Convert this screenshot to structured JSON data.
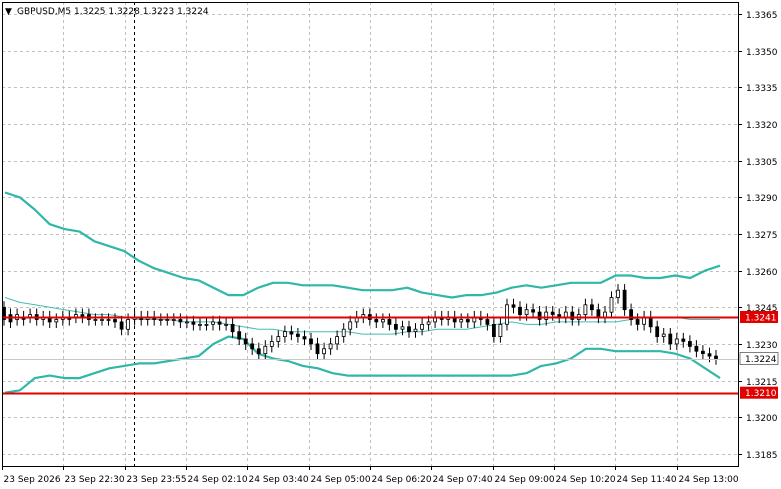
{
  "header": {
    "arrow": "▼",
    "title": "GBPUSD,M5  1.3225 1.3228 1.3223 1.3224"
  },
  "colors": {
    "background": "#ffffff",
    "grid": "#c0c0c0",
    "candle": "#000000",
    "bands": "#2fb7a8",
    "level_line": "#e00000",
    "current_label_bg": "#ffffff",
    "level_label_bg": "#e00000"
  },
  "chart_data": {
    "type": "candlestick",
    "symbol": "GBPUSD",
    "timeframe": "M5",
    "ohlc_header": {
      "open": 1.3225,
      "high": 1.3228,
      "low": 1.3223,
      "close": 1.3224
    },
    "ylim": [
      1.318,
      1.337
    ],
    "y_ticks": [
      "1.3365",
      "1.3350",
      "1.3335",
      "1.3320",
      "1.3305",
      "1.3290",
      "1.3275",
      "1.3260",
      "1.3245",
      "1.3230",
      "1.3215",
      "1.3200",
      "1.3185"
    ],
    "x_tick_labels": [
      "23 Sep 2026",
      "23 Sep 22:30",
      "23 Sep 23:55",
      "24 Sep 02:10",
      "24 Sep 03:40",
      "24 Sep 05:00",
      "24 Sep 06:20",
      "24 Sep 07:40",
      "24 Sep 09:00",
      "24 Sep 10:20",
      "24 Sep 11:40",
      "24 Sep 13:00"
    ],
    "grid": true,
    "current_price": {
      "value": 1.3224,
      "label": "1.3224"
    },
    "levels": [
      {
        "value": 1.3241,
        "label": "1.3241"
      },
      {
        "value": 1.321,
        "label": "1.3210"
      }
    ],
    "upper_band": [
      1.3292,
      1.329,
      1.3285,
      1.3279,
      1.3277,
      1.3276,
      1.3272,
      1.327,
      1.3268,
      1.3264,
      1.3261,
      1.3259,
      1.3257,
      1.3256,
      1.3253,
      1.325,
      1.325,
      1.3253,
      1.3255,
      1.3255,
      1.3254,
      1.3254,
      1.3254,
      1.3253,
      1.3252,
      1.3252,
      1.3252,
      1.3253,
      1.3251,
      1.325,
      1.3249,
      1.325,
      1.325,
      1.3251,
      1.3253,
      1.3254,
      1.3253,
      1.3254,
      1.3255,
      1.3255,
      1.3255,
      1.3258,
      1.3258,
      1.3257,
      1.3257,
      1.3258,
      1.3257,
      1.326,
      1.3262
    ],
    "middle_band": [
      1.3249,
      1.3247,
      1.3246,
      1.3245,
      1.3244,
      1.3243,
      1.3242,
      1.3242,
      1.3241,
      1.324,
      1.324,
      1.324,
      1.3239,
      1.3239,
      1.3239,
      1.3238,
      1.3237,
      1.3236,
      1.3236,
      1.3235,
      1.3235,
      1.3235,
      1.3235,
      1.3235,
      1.3234,
      1.3234,
      1.3234,
      1.3235,
      1.3235,
      1.3236,
      1.3236,
      1.3236,
      1.3237,
      1.3238,
      1.3239,
      1.3238,
      1.3238,
      1.3239,
      1.3239,
      1.3239,
      1.3239,
      1.3239,
      1.324,
      1.3241,
      1.3241,
      1.3241,
      1.324,
      1.324,
      1.324
    ],
    "lower_band": [
      1.321,
      1.3211,
      1.3216,
      1.3217,
      1.3216,
      1.3216,
      1.3218,
      1.322,
      1.3221,
      1.3222,
      1.3222,
      1.3223,
      1.3224,
      1.3225,
      1.323,
      1.3233,
      1.3232,
      1.3226,
      1.3224,
      1.3223,
      1.3221,
      1.322,
      1.3218,
      1.3217,
      1.3217,
      1.3217,
      1.3217,
      1.3217,
      1.3217,
      1.3217,
      1.3217,
      1.3217,
      1.3217,
      1.3217,
      1.3217,
      1.3218,
      1.3221,
      1.3222,
      1.3224,
      1.3228,
      1.3228,
      1.3227,
      1.3227,
      1.3227,
      1.3227,
      1.3226,
      1.3224,
      1.322,
      1.3216
    ],
    "candles": [
      [
        1.3245,
        1.324
      ],
      [
        1.3242,
        1.3239
      ],
      [
        1.324,
        1.3242
      ],
      [
        1.3241,
        1.324
      ],
      [
        1.3241,
        1.3242
      ],
      [
        1.3242,
        1.324
      ],
      [
        1.324,
        1.3241
      ],
      [
        1.3241,
        1.3239
      ],
      [
        1.3239,
        1.324
      ],
      [
        1.324,
        1.3241
      ],
      [
        1.3241,
        1.324
      ],
      [
        1.3241,
        1.3242
      ],
      [
        1.3242,
        1.3241
      ],
      [
        1.3242,
        1.324
      ],
      [
        1.324,
        1.324
      ],
      [
        1.324,
        1.324
      ],
      [
        1.324,
        1.324
      ],
      [
        1.324,
        1.3239
      ],
      [
        1.3239,
        1.3236
      ],
      [
        1.3236,
        1.324
      ],
      [
        1.324,
        1.3241
      ],
      [
        1.3241,
        1.324
      ],
      [
        1.324,
        1.3241
      ],
      [
        1.3241,
        1.324
      ],
      [
        1.324,
        1.324
      ],
      [
        1.324,
        1.324
      ],
      [
        1.324,
        1.324
      ],
      [
        1.324,
        1.3239
      ],
      [
        1.3239,
        1.3239
      ],
      [
        1.3239,
        1.3238
      ],
      [
        1.3238,
        1.3238
      ],
      [
        1.3238,
        1.3238
      ],
      [
        1.3238,
        1.3239
      ],
      [
        1.3239,
        1.3238
      ],
      [
        1.3238,
        1.3238
      ],
      [
        1.3238,
        1.3235
      ],
      [
        1.3235,
        1.3232
      ],
      [
        1.3232,
        1.323
      ],
      [
        1.323,
        1.3228
      ],
      [
        1.3228,
        1.3226
      ],
      [
        1.3226,
        1.3229
      ],
      [
        1.3229,
        1.3231
      ],
      [
        1.3231,
        1.3233
      ],
      [
        1.3233,
        1.3235
      ],
      [
        1.3235,
        1.3234
      ],
      [
        1.3234,
        1.3233
      ],
      [
        1.3233,
        1.3232
      ],
      [
        1.3232,
        1.323
      ],
      [
        1.323,
        1.3226
      ],
      [
        1.3226,
        1.3228
      ],
      [
        1.3228,
        1.323
      ],
      [
        1.323,
        1.3233
      ],
      [
        1.3233,
        1.3236
      ],
      [
        1.3236,
        1.3239
      ],
      [
        1.3239,
        1.3241
      ],
      [
        1.3241,
        1.3242
      ],
      [
        1.3242,
        1.324
      ],
      [
        1.324,
        1.3239
      ],
      [
        1.3239,
        1.324
      ],
      [
        1.324,
        1.3238
      ],
      [
        1.3238,
        1.3236
      ],
      [
        1.3236,
        1.3237
      ],
      [
        1.3237,
        1.3235
      ],
      [
        1.3235,
        1.3236
      ],
      [
        1.3236,
        1.3238
      ],
      [
        1.3238,
        1.3239
      ],
      [
        1.3239,
        1.3241
      ],
      [
        1.3241,
        1.324
      ],
      [
        1.324,
        1.3241
      ],
      [
        1.3241,
        1.3239
      ],
      [
        1.3239,
        1.324
      ],
      [
        1.324,
        1.3239
      ],
      [
        1.3239,
        1.3241
      ],
      [
        1.3241,
        1.324
      ],
      [
        1.324,
        1.3238
      ],
      [
        1.3238,
        1.3233
      ],
      [
        1.3233,
        1.3238
      ],
      [
        1.3238,
        1.3246
      ],
      [
        1.3246,
        1.3245
      ],
      [
        1.3245,
        1.3242
      ],
      [
        1.3242,
        1.3244
      ],
      [
        1.3244,
        1.3243
      ],
      [
        1.3243,
        1.324
      ],
      [
        1.324,
        1.3243
      ],
      [
        1.3243,
        1.3242
      ],
      [
        1.3242,
        1.3241
      ],
      [
        1.3241,
        1.3243
      ],
      [
        1.3243,
        1.324
      ],
      [
        1.324,
        1.3242
      ],
      [
        1.3242,
        1.3246
      ],
      [
        1.3246,
        1.3244
      ],
      [
        1.3244,
        1.3241
      ],
      [
        1.3241,
        1.3243
      ],
      [
        1.3243,
        1.3249
      ],
      [
        1.3249,
        1.3252
      ],
      [
        1.3252,
        1.3244
      ],
      [
        1.3244,
        1.324
      ],
      [
        1.324,
        1.3238
      ],
      [
        1.3238,
        1.3241
      ],
      [
        1.3241,
        1.3237
      ],
      [
        1.3237,
        1.3233
      ],
      [
        1.3233,
        1.3234
      ],
      [
        1.3234,
        1.323
      ],
      [
        1.323,
        1.3232
      ],
      [
        1.3232,
        1.3231
      ],
      [
        1.3231,
        1.3229
      ],
      [
        1.3229,
        1.3227
      ],
      [
        1.3227,
        1.3226
      ],
      [
        1.3226,
        1.3225
      ],
      [
        1.3225,
        1.3224
      ]
    ]
  }
}
